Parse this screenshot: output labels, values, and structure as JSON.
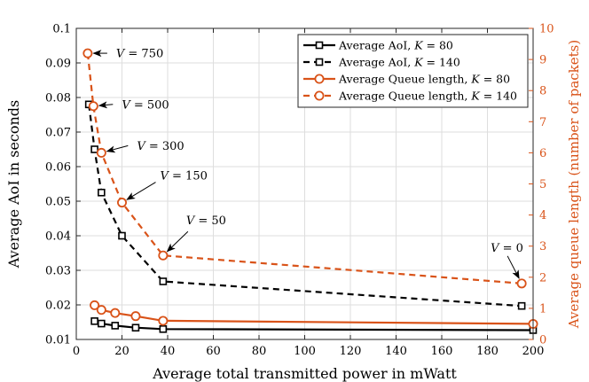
{
  "chart_data": {
    "type": "line",
    "title": "",
    "xlabel": "Average total transmitted power in mWatt",
    "ylabel": "Average AoI in seconds",
    "ylabel_right": "Average queue length (number of packets)",
    "xlim": [
      0,
      200
    ],
    "ylim": [
      0.01,
      0.1
    ],
    "ylim_right": [
      0,
      10
    ],
    "x_ticks": [
      "0",
      "20",
      "40",
      "60",
      "80",
      "100",
      "120",
      "140",
      "160",
      "180",
      "200"
    ],
    "y_ticks": [
      "0.01",
      "0.02",
      "0.03",
      "0.04",
      "0.05",
      "0.06",
      "0.07",
      "0.08",
      "0.09",
      "0.1"
    ],
    "y_ticks_right": [
      "0",
      "1",
      "2",
      "3",
      "4",
      "5",
      "6",
      "7",
      "8",
      "9",
      "10"
    ],
    "grid": true,
    "legend_position": "top-right",
    "colors": {
      "aoi": "#000000",
      "queue": "#D95319"
    },
    "series": [
      {
        "name": "Average AoI, K = 80",
        "legend_prefix": "Average AoI, ",
        "legend_var": "K",
        "legend_suffix": " = 80",
        "axis": "left",
        "dash": "solid",
        "color": "#000000",
        "marker": "square",
        "x": [
          8,
          11,
          17,
          26,
          38,
          200
        ],
        "y": [
          0.0153,
          0.0146,
          0.014,
          0.0134,
          0.013,
          0.0127
        ]
      },
      {
        "name": "Average AoI, K = 140",
        "legend_prefix": "Average AoI, ",
        "legend_var": "K",
        "legend_suffix": " = 140",
        "axis": "left",
        "dash": "dashed",
        "color": "#000000",
        "marker": "square",
        "x": [
          5.5,
          8,
          11,
          20,
          38,
          195
        ],
        "y": [
          0.078,
          0.065,
          0.0525,
          0.04,
          0.0268,
          0.0197
        ]
      },
      {
        "name": "Average Queue length, K = 80",
        "legend_prefix": "Average Queue length, ",
        "legend_var": "K",
        "legend_suffix": " = 80",
        "axis": "right",
        "dash": "solid",
        "color": "#D95319",
        "marker": "circle",
        "x": [
          8,
          11,
          17,
          26,
          38,
          200
        ],
        "y": [
          1.1,
          0.95,
          0.85,
          0.75,
          0.6,
          0.5
        ]
      },
      {
        "name": "Average Queue length, K = 140",
        "legend_prefix": "Average Queue length, ",
        "legend_var": "K",
        "legend_suffix": " = 140",
        "axis": "right",
        "dash": "dashed",
        "color": "#D95319",
        "marker": "circle",
        "x": [
          5,
          7.5,
          11,
          20,
          38,
          195
        ],
        "y": [
          9.2,
          7.5,
          6.0,
          4.4,
          2.7,
          1.8
        ]
      }
    ],
    "annotations": [
      {
        "var": "V",
        "text": " = 750",
        "x": 5,
        "y_right": 9.2
      },
      {
        "var": "V",
        "text": " = 500",
        "x": 7.5,
        "y_right": 7.5
      },
      {
        "var": "V",
        "text": " = 300",
        "x": 11,
        "y_right": 6.0
      },
      {
        "var": "V",
        "text": " = 150",
        "x": 20,
        "y_right": 4.4
      },
      {
        "var": "V",
        "text": " = 50",
        "x": 38,
        "y_right": 2.7
      },
      {
        "var": "V",
        "text": " = 0",
        "x": 195,
        "y_right": 1.8
      }
    ]
  }
}
